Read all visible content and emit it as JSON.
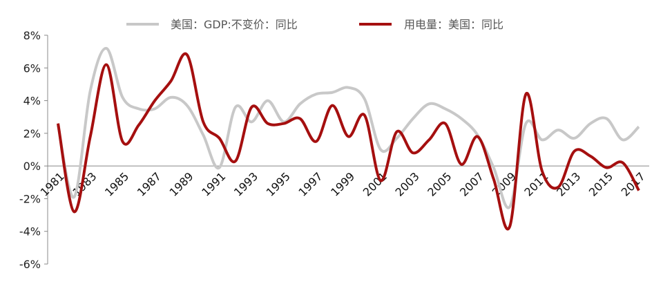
{
  "chart_data": {
    "type": "line",
    "title": "",
    "xlabel": "",
    "ylabel": "",
    "ylim": [
      -6,
      8
    ],
    "yticks": [
      "-6%",
      "-4%",
      "-2%",
      "0%",
      "2%",
      "4%",
      "6%",
      "8%"
    ],
    "ytick_values": [
      -6,
      -4,
      -2,
      0,
      2,
      4,
      6,
      8
    ],
    "x": [
      1981,
      1982,
      1983,
      1984,
      1985,
      1986,
      1987,
      1988,
      1989,
      1990,
      1991,
      1992,
      1993,
      1994,
      1995,
      1996,
      1997,
      1998,
      1999,
      2000,
      2001,
      2002,
      2003,
      2004,
      2005,
      2006,
      2007,
      2008,
      2009,
      2010,
      2011,
      2012,
      2013,
      2014,
      2015,
      2016,
      2017
    ],
    "xtick_labels": [
      "1981",
      "1983",
      "1985",
      "1987",
      "1989",
      "1991",
      "1993",
      "1995",
      "1997",
      "1999",
      "2001",
      "2003",
      "2005",
      "2007",
      "2009",
      "2011",
      "2013",
      "2015",
      "2017"
    ],
    "grid": false,
    "smooth": true,
    "legend_position": "top",
    "series": [
      {
        "name": "美国：GDP:不变价：同比",
        "color": "#c8c8c8",
        "values": [
          2.5,
          -1.9,
          4.6,
          7.2,
          4.2,
          3.5,
          3.5,
          4.2,
          3.7,
          1.9,
          -0.1,
          3.6,
          2.7,
          4.0,
          2.7,
          3.8,
          4.4,
          4.5,
          4.8,
          4.1,
          1.0,
          1.7,
          2.9,
          3.8,
          3.5,
          2.9,
          1.9,
          -0.1,
          -2.5,
          2.6,
          1.6,
          2.2,
          1.7,
          2.6,
          2.9,
          1.6,
          2.4
        ]
      },
      {
        "name": "用电量：美国：同比",
        "color": "#a50f0f",
        "values": [
          2.6,
          -2.8,
          1.8,
          6.2,
          1.5,
          2.5,
          4.0,
          5.2,
          6.8,
          2.7,
          1.7,
          0.3,
          3.6,
          2.6,
          2.6,
          2.9,
          1.5,
          3.7,
          1.8,
          3.1,
          -0.9,
          2.1,
          0.8,
          1.6,
          2.6,
          0.1,
          1.8,
          -0.8,
          -3.7,
          4.4,
          -0.3,
          -1.3,
          0.9,
          0.6,
          -0.1,
          0.2,
          -1.5
        ]
      }
    ]
  }
}
